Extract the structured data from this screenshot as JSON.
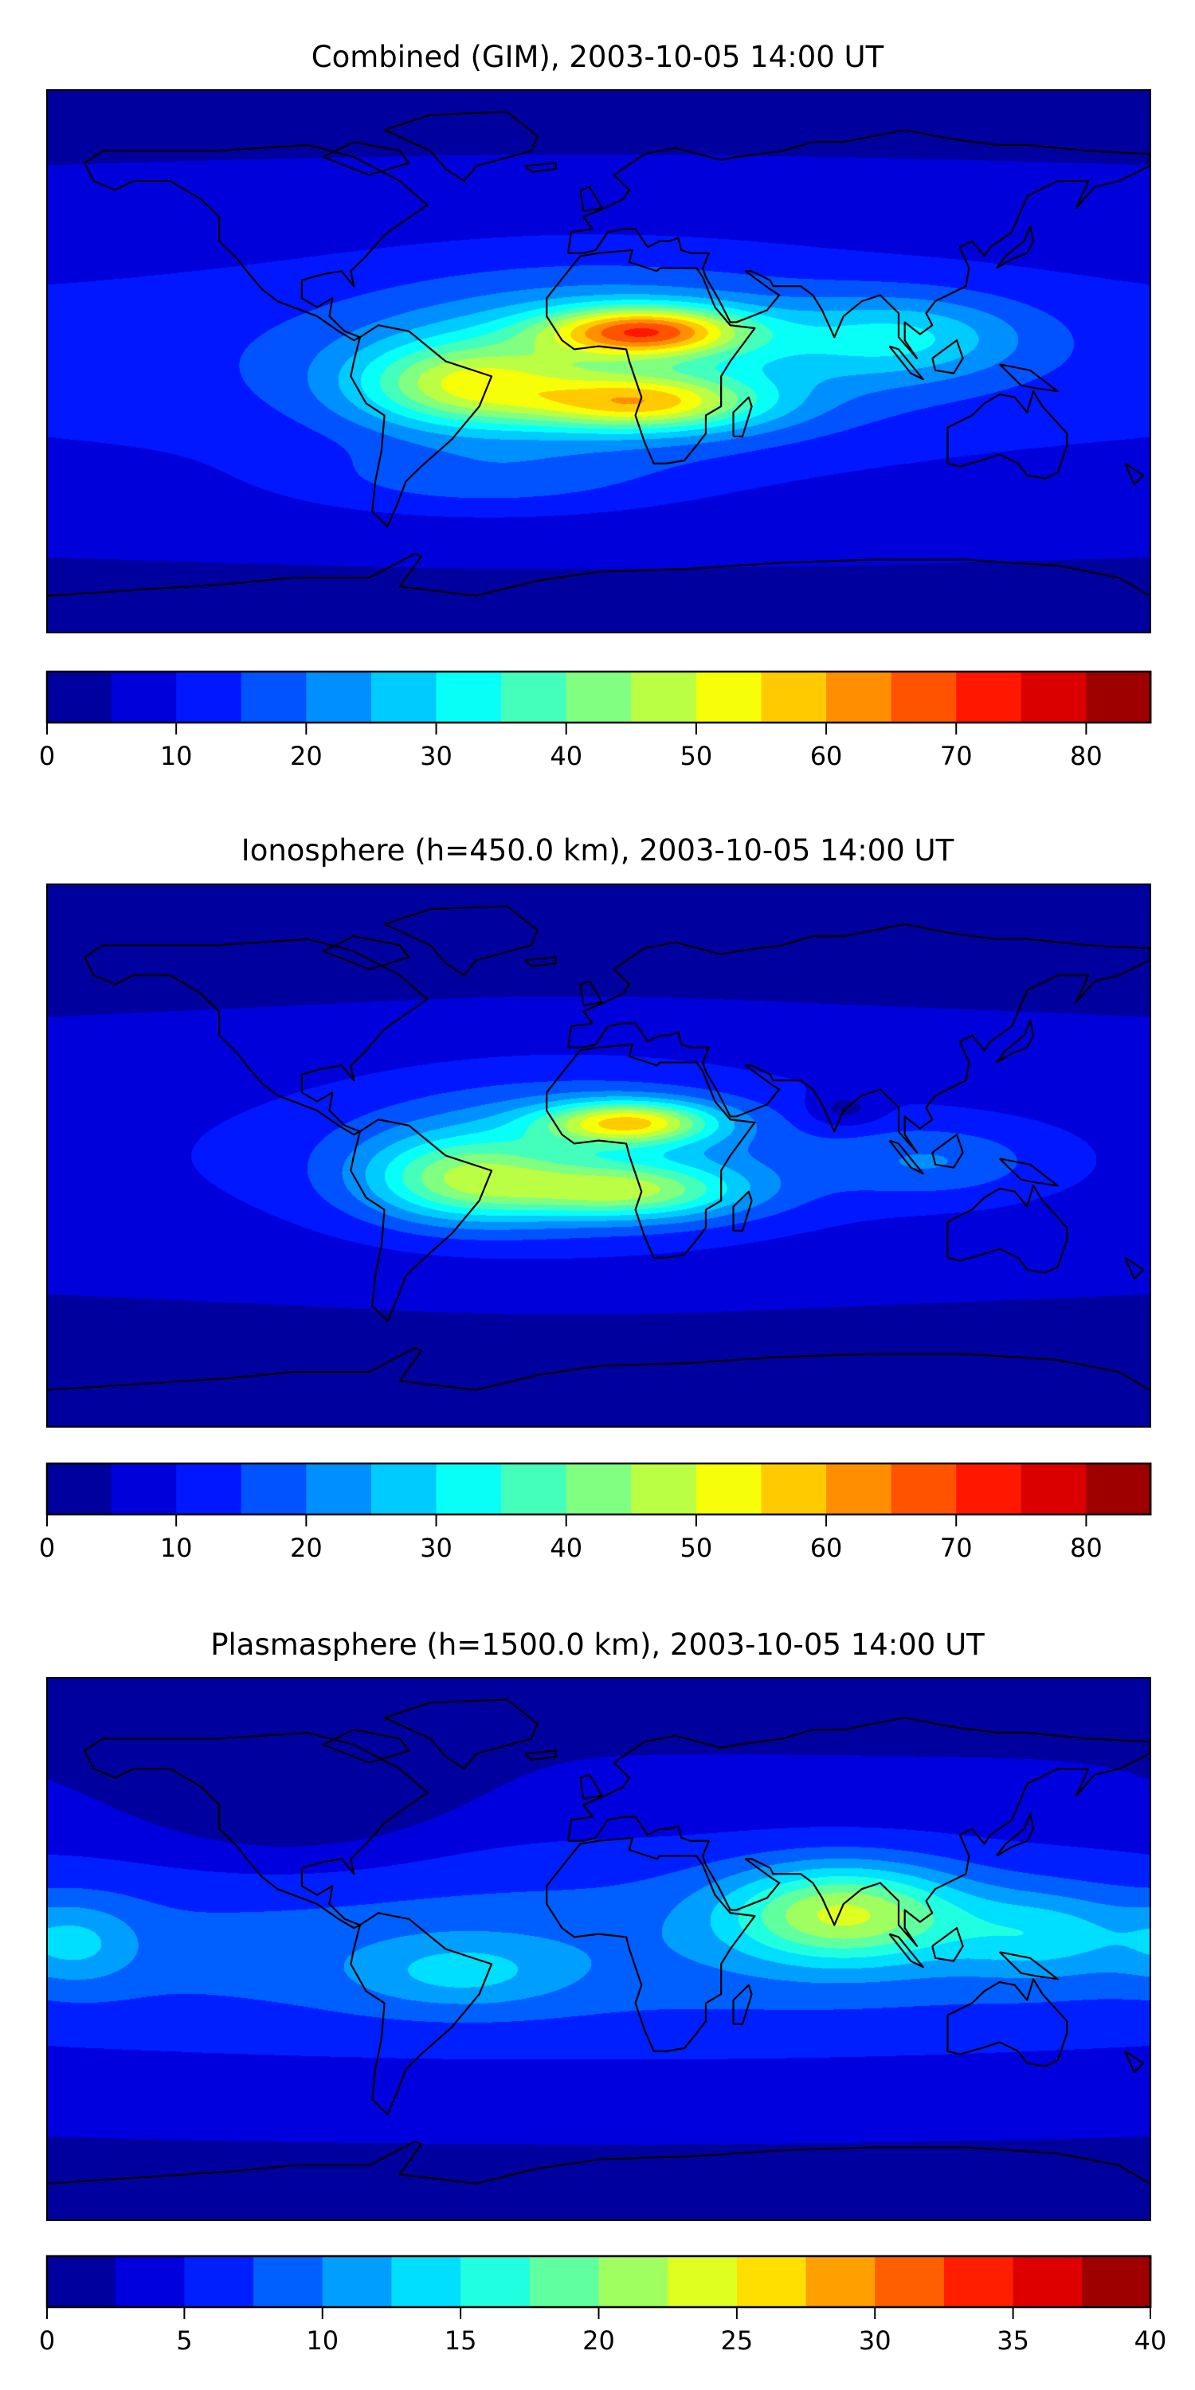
{
  "chart_data": [
    {
      "type": "heatmap",
      "title": "Combined (GIM), 2003-10-05 14:00 UT",
      "projection": "equirectangular",
      "lon_range": [
        -180,
        180
      ],
      "lat_range": [
        -90,
        90
      ],
      "colorbar": {
        "levels_min": 0,
        "levels_max": 85,
        "level_step": 5,
        "ticks": [
          0,
          10,
          20,
          30,
          40,
          50,
          60,
          70,
          80
        ],
        "colormap": "jet"
      },
      "field_base": 4,
      "field_features": [
        {
          "lon": 0,
          "lat": 0,
          "amp": 10,
          "sx": 400,
          "sy": 45
        },
        {
          "lon": 0,
          "lat": 0,
          "amp": 18,
          "sx": 75,
          "sy": 28
        },
        {
          "lon": 15,
          "lat": 10,
          "amp": 42,
          "sx": 32,
          "sy": 8
        },
        {
          "lon": 15,
          "lat": -14,
          "amp": 32,
          "sx": 38,
          "sy": 9
        },
        {
          "lon": -45,
          "lat": -8,
          "amp": 26,
          "sx": 35,
          "sy": 14
        },
        {
          "lon": 100,
          "lat": 8,
          "amp": 16,
          "sx": 40,
          "sy": 14
        },
        {
          "lon": -40,
          "lat": -40,
          "amp": 8,
          "sx": 60,
          "sy": 12
        }
      ]
    },
    {
      "type": "heatmap",
      "title": "Ionosphere  (h=450.0 km), 2003-10-05 14:00 UT",
      "projection": "equirectangular",
      "lon_range": [
        -180,
        180
      ],
      "lat_range": [
        -90,
        90
      ],
      "colorbar": {
        "levels_min": 0,
        "levels_max": 85,
        "level_step": 5,
        "ticks": [
          0,
          10,
          20,
          30,
          40,
          50,
          60,
          70,
          80
        ],
        "colormap": "jet"
      },
      "field_base": 3,
      "field_features": [
        {
          "lon": 0,
          "lat": 0,
          "amp": 7,
          "sx": 400,
          "sy": 45
        },
        {
          "lon": -10,
          "lat": 0,
          "amp": 16,
          "sx": 70,
          "sy": 26
        },
        {
          "lon": 10,
          "lat": 11,
          "amp": 36,
          "sx": 28,
          "sy": 7
        },
        {
          "lon": 10,
          "lat": -12,
          "amp": 26,
          "sx": 38,
          "sy": 9
        },
        {
          "lon": -45,
          "lat": -8,
          "amp": 24,
          "sx": 32,
          "sy": 14
        },
        {
          "lon": 110,
          "lat": -2,
          "amp": 10,
          "sx": 35,
          "sy": 12
        },
        {
          "lon": 80,
          "lat": 15,
          "amp": -8,
          "sx": 12,
          "sy": 6
        }
      ]
    },
    {
      "type": "heatmap",
      "title": "Plasmasphere (h=1500.0 km), 2003-10-05 14:00 UT",
      "projection": "equirectangular",
      "lon_range": [
        -180,
        180
      ],
      "lat_range": [
        -90,
        90
      ],
      "colorbar": {
        "levels_min": 0,
        "levels_max": 40,
        "level_step": 2.5,
        "ticks": [
          0,
          5,
          10,
          15,
          20,
          25,
          30,
          35,
          40
        ],
        "colormap": "jet"
      },
      "field_base": 2,
      "field_features": [
        {
          "lon": 0,
          "lat": 0,
          "amp": 7,
          "sx": 400,
          "sy": 40
        },
        {
          "lon": 80,
          "lat": 12,
          "amp": 15,
          "sx": 38,
          "sy": 16
        },
        {
          "lon": 145,
          "lat": 5,
          "amp": 6,
          "sx": 30,
          "sy": 14
        },
        {
          "lon": -45,
          "lat": -8,
          "amp": 5,
          "sx": 35,
          "sy": 12
        },
        {
          "lon": -170,
          "lat": 2,
          "amp": 5,
          "sx": 20,
          "sy": 14
        },
        {
          "lon": -100,
          "lat": 50,
          "amp": -4,
          "sx": 50,
          "sy": 25
        }
      ]
    }
  ],
  "coastlines": [
    [
      [
        -168,
        66
      ],
      [
        -162,
        70
      ],
      [
        -140,
        70
      ],
      [
        -125,
        70
      ],
      [
        -95,
        72
      ],
      [
        -80,
        68
      ],
      [
        -65,
        60
      ],
      [
        -56,
        52
      ],
      [
        -66,
        45
      ],
      [
        -70,
        42
      ],
      [
        -76,
        35
      ],
      [
        -81,
        30
      ],
      [
        -80,
        25
      ],
      [
        -84,
        30
      ],
      [
        -90,
        29
      ],
      [
        -97,
        27
      ],
      [
        -97,
        21
      ],
      [
        -92,
        18
      ],
      [
        -87,
        21
      ],
      [
        -88,
        15
      ],
      [
        -83,
        10
      ],
      [
        -78,
        8
      ],
      [
        -80,
        7
      ],
      [
        -85,
        10
      ],
      [
        -92,
        15
      ],
      [
        -105,
        20
      ],
      [
        -110,
        24
      ],
      [
        -115,
        30
      ],
      [
        -118,
        34
      ],
      [
        -124,
        40
      ],
      [
        -124,
        48
      ],
      [
        -130,
        54
      ],
      [
        -140,
        60
      ],
      [
        -152,
        60
      ],
      [
        -158,
        57
      ],
      [
        -165,
        60
      ],
      [
        -168,
        66
      ]
    ],
    [
      [
        -78,
        8
      ],
      [
        -72,
        12
      ],
      [
        -62,
        10
      ],
      [
        -50,
        0
      ],
      [
        -35,
        -5
      ],
      [
        -39,
        -15
      ],
      [
        -48,
        -26
      ],
      [
        -58,
        -35
      ],
      [
        -63,
        -40
      ],
      [
        -66,
        -48
      ],
      [
        -69,
        -55
      ],
      [
        -74,
        -50
      ],
      [
        -73,
        -40
      ],
      [
        -71,
        -30
      ],
      [
        -70,
        -18
      ],
      [
        -76,
        -14
      ],
      [
        -81,
        -5
      ],
      [
        -80,
        0
      ],
      [
        -78,
        8
      ]
    ],
    [
      [
        -55,
        82
      ],
      [
        -30,
        83
      ],
      [
        -20,
        75
      ],
      [
        -22,
        70
      ],
      [
        -40,
        65
      ],
      [
        -44,
        60
      ],
      [
        -50,
        64
      ],
      [
        -55,
        70
      ],
      [
        -70,
        77
      ],
      [
        -55,
        82
      ]
    ],
    [
      [
        -10,
        36
      ],
      [
        -9,
        43
      ],
      [
        -2,
        44
      ],
      [
        -5,
        48
      ],
      [
        2,
        51
      ],
      [
        8,
        54
      ],
      [
        10,
        57
      ],
      [
        5,
        62
      ],
      [
        15,
        69
      ],
      [
        25,
        71
      ],
      [
        40,
        67
      ],
      [
        45,
        68
      ],
      [
        60,
        70
      ],
      [
        70,
        73
      ],
      [
        80,
        73
      ],
      [
        100,
        77
      ],
      [
        115,
        74
      ],
      [
        130,
        72
      ],
      [
        140,
        72
      ],
      [
        160,
        70
      ],
      [
        180,
        69
      ],
      [
        180,
        65
      ],
      [
        170,
        60
      ],
      [
        162,
        58
      ],
      [
        156,
        51
      ],
      [
        160,
        60
      ],
      [
        150,
        60
      ],
      [
        140,
        55
      ],
      [
        135,
        43
      ],
      [
        128,
        38
      ],
      [
        126,
        35
      ],
      [
        122,
        40
      ],
      [
        118,
        38
      ],
      [
        121,
        31
      ],
      [
        120,
        25
      ],
      [
        110,
        20
      ],
      [
        107,
        16
      ],
      [
        109,
        12
      ],
      [
        105,
        9
      ],
      [
        100,
        13
      ],
      [
        100,
        7
      ],
      [
        104,
        1
      ],
      [
        98,
        8
      ],
      [
        98,
        16
      ],
      [
        92,
        22
      ],
      [
        86,
        20
      ],
      [
        80,
        15
      ],
      [
        77,
        8
      ],
      [
        73,
        17
      ],
      [
        70,
        22
      ],
      [
        66,
        25
      ],
      [
        57,
        25
      ],
      [
        56,
        27
      ],
      [
        50,
        30
      ],
      [
        48,
        30
      ],
      [
        56,
        24
      ],
      [
        59,
        22
      ],
      [
        55,
        17
      ],
      [
        45,
        13
      ],
      [
        43,
        13
      ],
      [
        39,
        21
      ],
      [
        35,
        28
      ],
      [
        34,
        31
      ],
      [
        36,
        36
      ],
      [
        30,
        36
      ],
      [
        27,
        37
      ],
      [
        26,
        41
      ],
      [
        23,
        40
      ],
      [
        20,
        40
      ],
      [
        16,
        38
      ],
      [
        12,
        44
      ],
      [
        8,
        44
      ],
      [
        3,
        43
      ],
      [
        -1,
        37
      ],
      [
        -5,
        36
      ],
      [
        -10,
        36
      ]
    ],
    [
      [
        -17,
        21
      ],
      [
        -17,
        15
      ],
      [
        -12,
        7
      ],
      [
        -8,
        4
      ],
      [
        0,
        5
      ],
      [
        9,
        4
      ],
      [
        10,
        0
      ],
      [
        12,
        -6
      ],
      [
        14,
        -12
      ],
      [
        12,
        -18
      ],
      [
        15,
        -27
      ],
      [
        18,
        -34
      ],
      [
        22,
        -34
      ],
      [
        28,
        -33
      ],
      [
        32,
        -28
      ],
      [
        35,
        -24
      ],
      [
        35,
        -18
      ],
      [
        40,
        -15
      ],
      [
        40,
        -5
      ],
      [
        43,
        0
      ],
      [
        51,
        11
      ],
      [
        43,
        12
      ],
      [
        38,
        18
      ],
      [
        34,
        28
      ],
      [
        32,
        31
      ],
      [
        20,
        31
      ],
      [
        19,
        30
      ],
      [
        10,
        33
      ],
      [
        11,
        37
      ],
      [
        0,
        36
      ],
      [
        -6,
        35
      ],
      [
        -10,
        30
      ],
      [
        -17,
        21
      ]
    ],
    [
      [
        114,
        -22
      ],
      [
        114,
        -34
      ],
      [
        118,
        -35
      ],
      [
        125,
        -33
      ],
      [
        131,
        -31
      ],
      [
        137,
        -34
      ],
      [
        140,
        -38
      ],
      [
        146,
        -39
      ],
      [
        150,
        -37
      ],
      [
        153,
        -28
      ],
      [
        153,
        -24
      ],
      [
        145,
        -15
      ],
      [
        142,
        -10
      ],
      [
        140,
        -17
      ],
      [
        136,
        -12
      ],
      [
        131,
        -11
      ],
      [
        126,
        -14
      ],
      [
        122,
        -18
      ],
      [
        114,
        -22
      ]
    ],
    [
      [
        -180,
        -78
      ],
      [
        -150,
        -76
      ],
      [
        -120,
        -74
      ],
      [
        -100,
        -72
      ],
      [
        -75,
        -72
      ],
      [
        -60,
        -64
      ],
      [
        -58,
        -65
      ],
      [
        -65,
        -75
      ],
      [
        -40,
        -78
      ],
      [
        -20,
        -73
      ],
      [
        0,
        -70
      ],
      [
        30,
        -69
      ],
      [
        60,
        -67
      ],
      [
        90,
        -66
      ],
      [
        120,
        -66
      ],
      [
        150,
        -68
      ],
      [
        170,
        -72
      ],
      [
        180,
        -78
      ]
    ],
    [
      [
        -5,
        50
      ],
      [
        1,
        51
      ],
      [
        0,
        53
      ],
      [
        -3,
        58
      ],
      [
        -6,
        57
      ],
      [
        -5,
        50
      ]
    ],
    [
      [
        44,
        -25
      ],
      [
        47,
        -25
      ],
      [
        50,
        -15
      ],
      [
        49,
        -12
      ],
      [
        44,
        -17
      ],
      [
        44,
        -25
      ]
    ],
    [
      [
        130,
        31
      ],
      [
        135,
        34
      ],
      [
        140,
        36
      ],
      [
        142,
        40
      ],
      [
        141,
        45
      ],
      [
        139,
        40
      ],
      [
        133,
        35
      ],
      [
        130,
        31
      ]
    ],
    [
      [
        109,
        1
      ],
      [
        117,
        7
      ],
      [
        119,
        1
      ],
      [
        116,
        -4
      ],
      [
        110,
        -3
      ],
      [
        109,
        1
      ]
    ],
    [
      [
        95,
        5
      ],
      [
        98,
        4
      ],
      [
        106,
        -6
      ],
      [
        102,
        -4
      ],
      [
        95,
        5
      ]
    ],
    [
      [
        131,
        -1
      ],
      [
        141,
        -3
      ],
      [
        150,
        -10
      ],
      [
        143,
        -9
      ],
      [
        138,
        -8
      ],
      [
        131,
        -1
      ]
    ],
    [
      [
        172,
        -34
      ],
      [
        178,
        -38
      ],
      [
        175,
        -41
      ],
      [
        172,
        -34
      ]
    ],
    [
      [
        -24,
        65
      ],
      [
        -14,
        66
      ],
      [
        -14,
        64
      ],
      [
        -22,
        63
      ],
      [
        -24,
        65
      ]
    ],
    [
      [
        -80,
        73
      ],
      [
        -65,
        70
      ],
      [
        -62,
        66
      ],
      [
        -75,
        62
      ],
      [
        -90,
        68
      ],
      [
        -80,
        73
      ]
    ]
  ]
}
